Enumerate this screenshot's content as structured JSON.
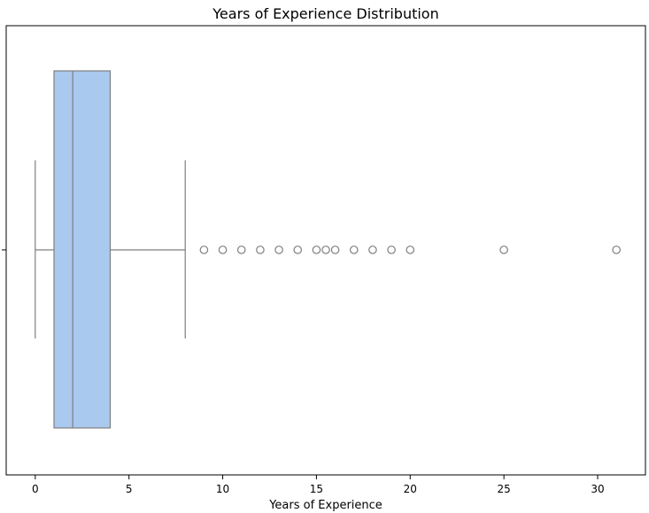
{
  "chart_data": {
    "type": "boxplot",
    "title": "Years of Experience Distribution",
    "xlabel": "Years of Experience",
    "ylabel": "",
    "xlim": [
      -1.55,
      32.55
    ],
    "xticks": [
      0,
      5,
      10,
      15,
      20,
      25,
      30
    ],
    "xtick_labels": [
      "0",
      "5",
      "10",
      "15",
      "20",
      "25",
      "30"
    ],
    "orientation": "horizontal",
    "grid": false,
    "box": {
      "whisker_low": 0,
      "q1": 1,
      "median": 2,
      "q3": 4,
      "whisker_high": 8
    },
    "outliers": [
      9,
      10,
      11,
      12,
      13,
      14,
      15,
      15.5,
      16,
      17,
      18,
      19,
      20,
      25,
      31
    ],
    "colors": {
      "box_fill": "#a9c9ef",
      "line": "#7f7f7f",
      "axes": "#000000",
      "background": "#ffffff"
    }
  }
}
